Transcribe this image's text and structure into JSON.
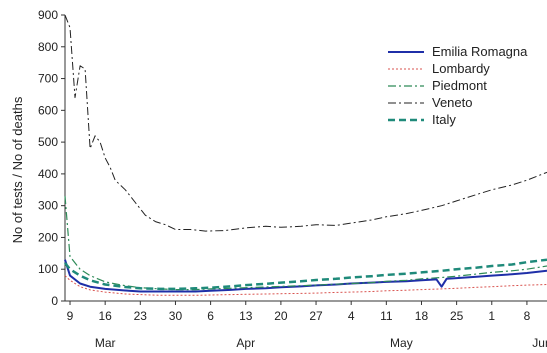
{
  "chart_data": {
    "type": "line",
    "ylabel": "No of tests / No of deaths",
    "xlabel": "",
    "ylim": [
      0,
      900
    ],
    "yticks": [
      0,
      100,
      200,
      300,
      400,
      500,
      600,
      700,
      800,
      900
    ],
    "xlim": [
      8,
      104
    ],
    "xticks": [
      9,
      16,
      23,
      30,
      37,
      44,
      51,
      58,
      65,
      72,
      79,
      86,
      93,
      100
    ],
    "xtick_labels": [
      "9",
      "16",
      "23",
      "30",
      "6",
      "13",
      "20",
      "27",
      "4",
      "11",
      "18",
      "25",
      "1",
      "8"
    ],
    "month_labels": [
      {
        "label": "Mar",
        "x": 16
      },
      {
        "label": "Apr",
        "x": 44
      },
      {
        "label": "May",
        "x": 75
      },
      {
        "label": "Jun",
        "x": 103
      }
    ],
    "legend": {
      "position": "top-right"
    },
    "series": [
      {
        "name": "Emilia Romagna",
        "color": "#1f2fa8",
        "style": "solid",
        "width": 2,
        "x": [
          8,
          9,
          11,
          13,
          16,
          20,
          23,
          27,
          30,
          34,
          37,
          41,
          44,
          48,
          51,
          55,
          58,
          62,
          65,
          69,
          72,
          76,
          79,
          82,
          83,
          84,
          86,
          90,
          93,
          97,
          100,
          104
        ],
        "y": [
          130,
          80,
          55,
          45,
          38,
          33,
          30,
          30,
          30,
          30,
          32,
          35,
          38,
          40,
          43,
          46,
          49,
          52,
          55,
          58,
          60,
          62,
          65,
          68,
          45,
          70,
          72,
          76,
          80,
          84,
          88,
          95
        ]
      },
      {
        "name": "Lombardy",
        "color": "#d9534f",
        "style": "dotted",
        "width": 1,
        "x": [
          8,
          9,
          11,
          13,
          16,
          20,
          23,
          27,
          30,
          34,
          37,
          41,
          44,
          48,
          51,
          55,
          58,
          62,
          65,
          69,
          72,
          76,
          79,
          83,
          86,
          90,
          93,
          97,
          100,
          104
        ],
        "y": [
          80,
          65,
          45,
          35,
          28,
          22,
          20,
          18,
          18,
          18,
          19,
          20,
          21,
          22,
          23,
          24,
          25,
          27,
          28,
          30,
          32,
          34,
          36,
          38,
          40,
          43,
          45,
          48,
          50,
          52
        ]
      },
      {
        "name": "Piedmont",
        "color": "#2e8b57",
        "style": "dashdot",
        "width": 1.2,
        "x": [
          8,
          9,
          10,
          11,
          13,
          16,
          20,
          23,
          27,
          30,
          34,
          37,
          41,
          44,
          48,
          51,
          55,
          58,
          62,
          65,
          69,
          72,
          76,
          79,
          83,
          86,
          90,
          93,
          97,
          100,
          104
        ],
        "y": [
          330,
          140,
          120,
          100,
          80,
          60,
          48,
          42,
          38,
          36,
          36,
          38,
          40,
          42,
          44,
          46,
          48,
          50,
          53,
          55,
          58,
          62,
          65,
          70,
          74,
          78,
          85,
          90,
          95,
          100,
          110
        ]
      },
      {
        "name": "Veneto",
        "color": "#222222",
        "style": "dashdot",
        "width": 1,
        "x": [
          8,
          9,
          10,
          11,
          12,
          13,
          14,
          15,
          16,
          17,
          18,
          20,
          22,
          24,
          26,
          28,
          30,
          33,
          36,
          40,
          44,
          48,
          51,
          55,
          58,
          62,
          65,
          69,
          72,
          76,
          79,
          83,
          86,
          90,
          93,
          97,
          100,
          104
        ],
        "y": [
          900,
          860,
          640,
          740,
          730,
          480,
          520,
          500,
          450,
          420,
          380,
          350,
          310,
          270,
          250,
          240,
          225,
          225,
          220,
          222,
          230,
          235,
          232,
          235,
          240,
          238,
          245,
          255,
          265,
          275,
          285,
          300,
          315,
          335,
          350,
          365,
          380,
          405
        ]
      },
      {
        "name": "Italy",
        "color": "#1f8a7a",
        "style": "dashed",
        "width": 2.5,
        "x": [
          8,
          9,
          11,
          13,
          16,
          20,
          23,
          27,
          30,
          34,
          37,
          41,
          44,
          48,
          51,
          55,
          58,
          62,
          65,
          69,
          72,
          76,
          79,
          83,
          86,
          90,
          93,
          97,
          100,
          104
        ],
        "y": [
          120,
          100,
          80,
          65,
          52,
          44,
          40,
          38,
          38,
          40,
          42,
          46,
          50,
          54,
          58,
          62,
          66,
          70,
          74,
          78,
          82,
          86,
          90,
          95,
          100,
          105,
          110,
          115,
          122,
          130
        ]
      }
    ]
  }
}
